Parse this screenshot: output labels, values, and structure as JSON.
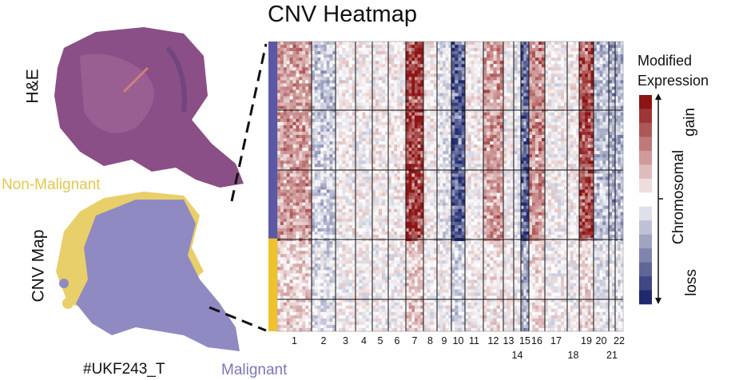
{
  "figure": {
    "panel_he_label": "H&E",
    "panel_cnv_label": "CNV Map",
    "non_malignant_label": "Non-Malignant",
    "malignant_label": "Malignant",
    "sample_id": "#UKF243_T"
  },
  "colors": {
    "non_malignant": "#e9cf6a",
    "malignant": "#8f8ac2",
    "malignant_bar": "#5b58a6",
    "non_malignant_bar": "#efc12a",
    "gain": "#8e1414",
    "loss": "#1f2a6e",
    "he_tissue": "#8a4f86"
  },
  "chart_data": {
    "type": "heatmap",
    "title": "CNV Heatmap",
    "x_categories": [
      "1",
      "2",
      "3",
      "4",
      "5",
      "6",
      "7",
      "8",
      "9",
      "10",
      "11",
      "12",
      "13",
      "14",
      "15",
      "16",
      "17",
      "18",
      "19",
      "20",
      "21",
      "22"
    ],
    "x_label_lower_row": [
      "14",
      "18",
      "21"
    ],
    "row_groups": [
      {
        "name": "Malignant",
        "fraction": 0.68
      },
      {
        "name": "Non-Malignant",
        "fraction": 0.32
      }
    ],
    "mean_cnv_malignant": [
      0.45,
      -0.25,
      0.05,
      0.0,
      0.05,
      0.05,
      0.9,
      0.05,
      -0.1,
      -0.8,
      0.05,
      0.45,
      0.0,
      -0.1,
      -0.75,
      0.5,
      0.0,
      0.05,
      0.8,
      -0.3,
      -0.4,
      -0.35
    ],
    "mean_cnv_non_malignant": [
      0.2,
      -0.15,
      0.0,
      0.0,
      0.0,
      0.0,
      0.25,
      0.0,
      0.0,
      -0.2,
      0.0,
      0.1,
      0.0,
      0.0,
      -0.4,
      0.15,
      0.0,
      0.0,
      0.15,
      -0.1,
      -0.1,
      -0.1
    ],
    "value_range": [
      -1,
      1
    ],
    "legend": {
      "title_line1": "Modified",
      "title_line2": "Expression",
      "axis_label": "Chromosomal",
      "top_label": "gain",
      "bottom_label": "loss",
      "steps": 15
    }
  }
}
